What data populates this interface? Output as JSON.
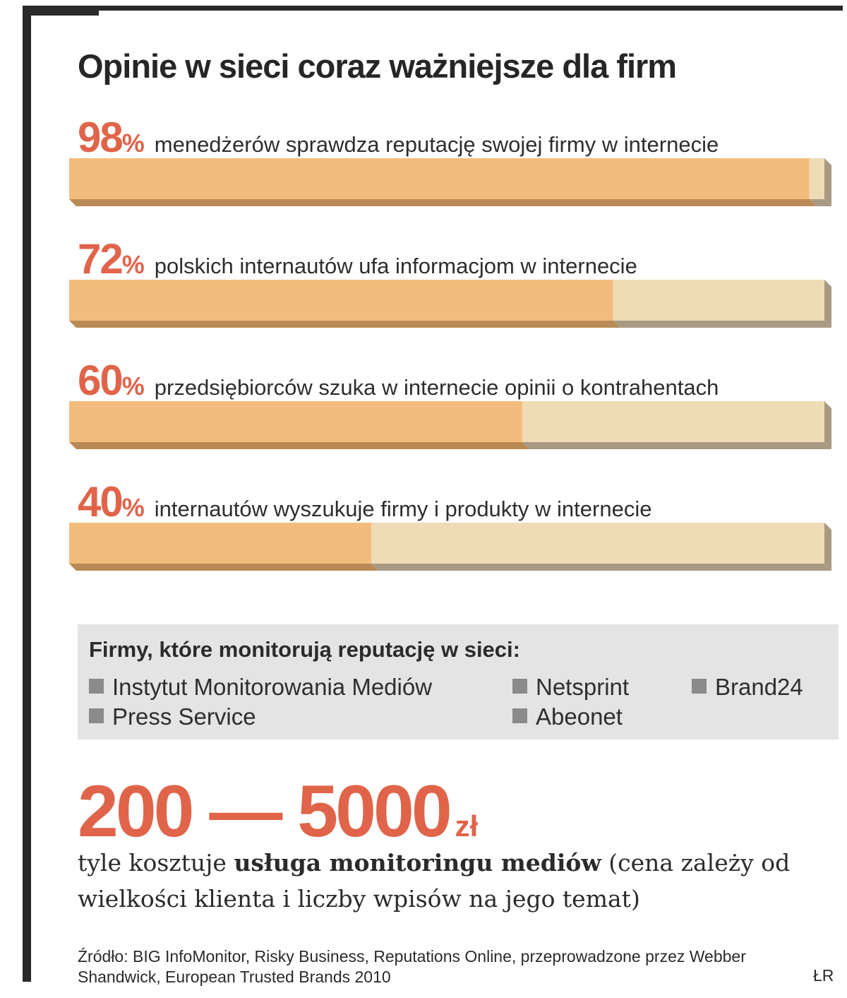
{
  "title": "Opinie w sieci coraz ważniejsze dla firm",
  "colors": {
    "accent": "#e0644a",
    "bar_fill": "#f2bd7c",
    "bar_fill_side": "#b98a55",
    "bar_remainder": "#efdcb7",
    "bar_remainder_side": "#a89a82",
    "frame": "#2a2a2a",
    "box_background": "#e4e4e4",
    "bullet": "#8a8a8a"
  },
  "chart_data": {
    "type": "bar",
    "orientation": "horizontal",
    "xlim": [
      0,
      100
    ],
    "categories": [
      "menedżerów sprawdza reputację swojej firmy w internecie",
      "polskich internautów ufa informacjom w internecie",
      "przedsiębiorców szuka w internecie opinii o kontrahentach",
      "internautów wyszukuje firmy i produkty w internecie"
    ],
    "values": [
      98,
      72,
      60,
      40
    ],
    "value_labels": [
      "98",
      "72",
      "60",
      "40"
    ],
    "unit": "%"
  },
  "firms_box": {
    "title": "Firmy, które monitorują reputację w sieci:",
    "items": [
      "Instytut Monitorowania Mediów",
      "Netsprint",
      "Brand24",
      "Press Service",
      "Abeonet"
    ]
  },
  "cost": {
    "range": "200 — 5000",
    "currency": "zł",
    "text_before": "tyle kosztuje ",
    "text_bold": "usługa monitoringu mediów",
    "text_after": " (cena zależy od wielkości klienta i liczby wpisów na jego temat)"
  },
  "source": "Źródło: BIG InfoMonitor, Risky Business, Reputations Online, przeprowadzone przez Webber Shandwick, European Trusted Brands 2010",
  "author": "ŁR"
}
